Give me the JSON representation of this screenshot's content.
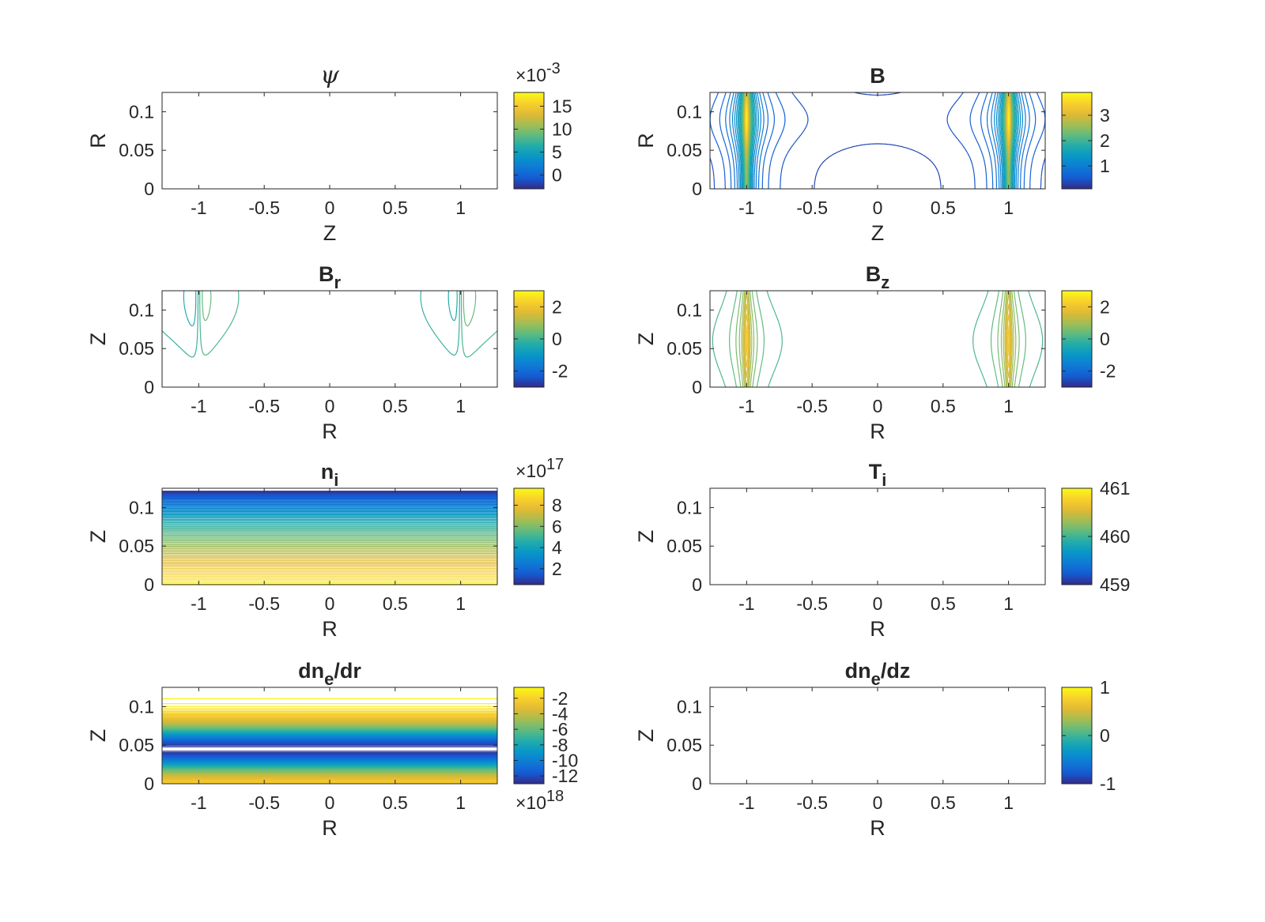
{
  "chart_data": [
    {
      "type": "contour",
      "title": "ψ",
      "title_sub": "",
      "title_suffix": "",
      "title_style": "italic-serif",
      "xlabel": "Z",
      "ylabel": "R",
      "xlim": [
        -1.28,
        1.28
      ],
      "ylim": [
        0,
        0.125
      ],
      "xticks": [
        -1,
        -0.5,
        0,
        0.5,
        1
      ],
      "xtick_labels": [
        "-1",
        "-0.5",
        "0",
        "0.5",
        "1"
      ],
      "yticks": [
        0,
        0.05,
        0.1
      ],
      "ytick_labels": [
        "0",
        "0.05",
        "0.1"
      ],
      "colorbar": {
        "min": -3,
        "max": 18,
        "ticks": [
          0,
          5,
          10,
          15
        ],
        "tick_labels": [
          "0",
          "5",
          "10",
          "15"
        ],
        "exponent_label": "×10-3",
        "exponent_position": "top"
      },
      "pattern": "psi",
      "contour_levels": 24
    },
    {
      "type": "contour",
      "title": "B",
      "title_sub": "",
      "title_suffix": "",
      "title_style": "bold",
      "xlabel": "Z",
      "ylabel": "R",
      "xlim": [
        -1.28,
        1.28
      ],
      "ylim": [
        0,
        0.125
      ],
      "xticks": [
        -1,
        -0.5,
        0,
        0.5,
        1
      ],
      "xtick_labels": [
        "-1",
        "-0.5",
        "0",
        "0.5",
        "1"
      ],
      "yticks": [
        0,
        0.05,
        0.1
      ],
      "ytick_labels": [
        "0",
        "0.05",
        "0.1"
      ],
      "colorbar": {
        "min": 0.1,
        "max": 3.9,
        "ticks": [
          1,
          2,
          3
        ],
        "tick_labels": [
          "1",
          "2",
          "3"
        ],
        "exponent_label": "",
        "exponent_position": ""
      },
      "pattern": "bmag",
      "contour_levels": 30
    },
    {
      "type": "contour",
      "title": "B",
      "title_sub": "r",
      "title_suffix": "",
      "title_style": "bold",
      "xlabel": "R",
      "ylabel": "Z",
      "xlim": [
        -1.28,
        1.28
      ],
      "ylim": [
        0,
        0.125
      ],
      "xticks": [
        -1,
        -0.5,
        0,
        0.5,
        1
      ],
      "xtick_labels": [
        "-1",
        "-0.5",
        "0",
        "0.5",
        "1"
      ],
      "yticks": [
        0,
        0.05,
        0.1
      ],
      "ytick_labels": [
        "0",
        "0.05",
        "0.1"
      ],
      "colorbar": {
        "min": -3,
        "max": 3,
        "ticks": [
          -2,
          0,
          2
        ],
        "tick_labels": [
          "-2",
          "0",
          "2"
        ],
        "exponent_label": "",
        "exponent_position": ""
      },
      "pattern": "br",
      "contour_levels": 22
    },
    {
      "type": "contour",
      "title": "B",
      "title_sub": "z",
      "title_suffix": "",
      "title_style": "bold",
      "xlabel": "R",
      "ylabel": "Z",
      "xlim": [
        -1.28,
        1.28
      ],
      "ylim": [
        0,
        0.125
      ],
      "xticks": [
        -1,
        -0.5,
        0,
        0.5,
        1
      ],
      "xtick_labels": [
        "-1",
        "-0.5",
        "0",
        "0.5",
        "1"
      ],
      "yticks": [
        0,
        0.05,
        0.1
      ],
      "ytick_labels": [
        "0",
        "0.05",
        "0.1"
      ],
      "colorbar": {
        "min": -3,
        "max": 3,
        "ticks": [
          -2,
          0,
          2
        ],
        "tick_labels": [
          "-2",
          "0",
          "2"
        ],
        "exponent_label": "",
        "exponent_position": ""
      },
      "pattern": "bz",
      "contour_levels": 26
    },
    {
      "type": "contour",
      "title": "n",
      "title_sub": "i",
      "title_suffix": "",
      "title_style": "bold",
      "xlabel": "R",
      "ylabel": "Z",
      "xlim": [
        -1.28,
        1.28
      ],
      "ylim": [
        0,
        0.125
      ],
      "xticks": [
        -1,
        -0.5,
        0,
        0.5,
        1
      ],
      "xtick_labels": [
        "-1",
        "-0.5",
        "0",
        "0.5",
        "1"
      ],
      "yticks": [
        0,
        0.05,
        0.1
      ],
      "ytick_labels": [
        "0",
        "0.05",
        "0.1"
      ],
      "colorbar": {
        "min": 0.5,
        "max": 9.6,
        "ticks": [
          2,
          4,
          6,
          8
        ],
        "tick_labels": [
          "2",
          "4",
          "6",
          "8"
        ],
        "exponent_label": "×1017",
        "exponent_position": "top"
      },
      "pattern": "ni",
      "contour_levels": 80
    },
    {
      "type": "contour",
      "title": "T",
      "title_sub": "i",
      "title_suffix": "",
      "title_style": "bold",
      "xlabel": "R",
      "ylabel": "Z",
      "xlim": [
        -1.28,
        1.28
      ],
      "ylim": [
        0,
        0.125
      ],
      "xticks": [
        -1,
        -0.5,
        0,
        0.5,
        1
      ],
      "xtick_labels": [
        "-1",
        "-0.5",
        "0",
        "0.5",
        "1"
      ],
      "yticks": [
        0,
        0.05,
        0.1
      ],
      "ytick_labels": [
        "0",
        "0.05",
        "0.1"
      ],
      "colorbar": {
        "min": 459,
        "max": 461,
        "ticks": [
          459,
          460,
          461
        ],
        "tick_labels": [
          "459",
          "460",
          "461"
        ],
        "exponent_label": "",
        "exponent_position": ""
      },
      "pattern": "empty",
      "contour_levels": 0
    },
    {
      "type": "contour",
      "title": "dn",
      "title_sub": "e",
      "title_suffix": "/dr",
      "title_style": "bold",
      "xlabel": "R",
      "ylabel": "Z",
      "xlim": [
        -1.28,
        1.28
      ],
      "ylim": [
        0,
        0.125
      ],
      "xticks": [
        -1,
        -0.5,
        0,
        0.5,
        1
      ],
      "xtick_labels": [
        "-1",
        "-0.5",
        "0",
        "0.5",
        "1"
      ],
      "yticks": [
        0,
        0.05,
        0.1
      ],
      "ytick_labels": [
        "0",
        "0.05",
        "0.1"
      ],
      "colorbar": {
        "min": -13,
        "max": -0.6,
        "ticks": [
          -12,
          -10,
          -8,
          -6,
          -4,
          -2
        ],
        "tick_labels": [
          "-12",
          "-10",
          "-8",
          "-6",
          "-4",
          "-2"
        ],
        "exponent_label": "×1018",
        "exponent_position": "bottom"
      },
      "pattern": "dnedr",
      "contour_levels": 80
    },
    {
      "type": "contour",
      "title": "dn",
      "title_sub": "e",
      "title_suffix": "/dz",
      "title_style": "bold",
      "xlabel": "R",
      "ylabel": "Z",
      "xlim": [
        -1.28,
        1.28
      ],
      "ylim": [
        0,
        0.125
      ],
      "xticks": [
        -1,
        -0.5,
        0,
        0.5,
        1
      ],
      "xtick_labels": [
        "-1",
        "-0.5",
        "0",
        "0.5",
        "1"
      ],
      "yticks": [
        0,
        0.05,
        0.1
      ],
      "ytick_labels": [
        "0",
        "0.05",
        "0.1"
      ],
      "colorbar": {
        "min": -1,
        "max": 1,
        "ticks": [
          -1,
          0,
          1
        ],
        "tick_labels": [
          "-1",
          "0",
          "1"
        ],
        "exponent_label": "",
        "exponent_position": ""
      },
      "pattern": "empty",
      "contour_levels": 0
    }
  ]
}
